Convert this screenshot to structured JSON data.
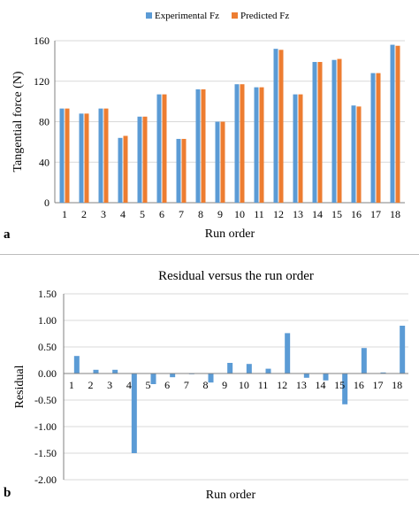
{
  "colors": {
    "experimental": "#5b9bd5",
    "predicted": "#ed7d31",
    "residual": "#5b9bd5"
  },
  "panel_labels": {
    "a": "a",
    "b": "b"
  },
  "chart_data": [
    {
      "type": "bar",
      "title": "",
      "xlabel": "Run order",
      "ylabel": "Tangential force  (N)",
      "ylim": [
        0,
        160
      ],
      "yticks": [
        "0",
        "40",
        "80",
        "120",
        "160"
      ],
      "grid": true,
      "legend_position": "top",
      "categories": [
        "1",
        "2",
        "3",
        "4",
        "5",
        "6",
        "7",
        "8",
        "9",
        "10",
        "11",
        "12",
        "13",
        "14",
        "15",
        "16",
        "17",
        "18"
      ],
      "series": [
        {
          "name": "Experimental Fz",
          "values": [
            93,
            88,
            93,
            64,
            85,
            107,
            63,
            112,
            80,
            117,
            114,
            152,
            107,
            139,
            141,
            96,
            128,
            156
          ]
        },
        {
          "name": "Predicted Fz",
          "values": [
            93,
            88,
            93,
            66,
            85,
            107,
            63,
            112,
            80,
            117,
            114,
            151,
            107,
            139,
            142,
            95,
            128,
            155
          ]
        }
      ]
    },
    {
      "type": "bar",
      "title": "Residual versus the run order",
      "xlabel": "Run order",
      "ylabel": "Residual",
      "ylim": [
        -2.0,
        1.5
      ],
      "yticks": [
        "1.50",
        "1.00",
        "0.50",
        "0.00",
        "-0.50",
        "-1.00",
        "-1.50",
        "-2.00"
      ],
      "grid": true,
      "categories": [
        "1",
        "2",
        "3",
        "4",
        "5",
        "6",
        "7",
        "8",
        "9",
        "10",
        "11",
        "12",
        "13",
        "14",
        "15",
        "16",
        "17",
        "18"
      ],
      "values": [
        0.33,
        0.07,
        0.07,
        -1.5,
        -0.2,
        -0.07,
        0.0,
        -0.17,
        0.2,
        0.18,
        0.09,
        0.76,
        -0.08,
        -0.13,
        -0.58,
        0.48,
        0.02,
        0.9
      ]
    }
  ]
}
